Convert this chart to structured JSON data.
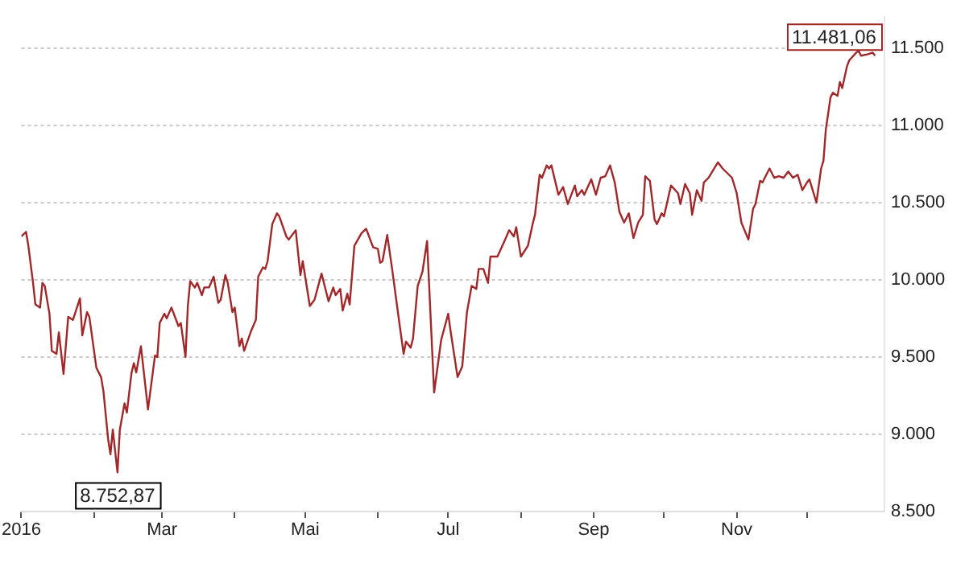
{
  "chart_data": {
    "type": "line",
    "series": [
      {
        "color": "#a0282a",
        "x": [
          "2016-01-01",
          "2016-01-03",
          "2016-01-04",
          "2016-01-06",
          "2016-01-07",
          "2016-01-09",
          "2016-01-10",
          "2016-01-11",
          "2016-01-13",
          "2016-01-14",
          "2016-01-16",
          "2016-01-17",
          "2016-01-19",
          "2016-01-21",
          "2016-01-23",
          "2016-01-26",
          "2016-01-27",
          "2016-01-29",
          "2016-01-30",
          "2016-02-02",
          "2016-02-04",
          "2016-02-05",
          "2016-02-07",
          "2016-02-08",
          "2016-02-09",
          "2016-02-11",
          "2016-02-12",
          "2016-02-14",
          "2016-02-15",
          "2016-02-17",
          "2016-02-18",
          "2016-02-19",
          "2016-02-21",
          "2016-02-24",
          "2016-02-27",
          "2016-02-28",
          "2016-02-29",
          "2016-03-02",
          "2016-03-03",
          "2016-03-05",
          "2016-03-08",
          "2016-03-09",
          "2016-03-11",
          "2016-03-12",
          "2016-03-13",
          "2016-03-15",
          "2016-03-16",
          "2016-03-18",
          "2016-03-19",
          "2016-03-21",
          "2016-03-23",
          "2016-03-25",
          "2016-03-26",
          "2016-03-28",
          "2016-03-29",
          "2016-03-31",
          "2016-04-01",
          "2016-04-03",
          "2016-04-04",
          "2016-04-05",
          "2016-04-08",
          "2016-04-10",
          "2016-04-11",
          "2016-04-13",
          "2016-04-14",
          "2016-04-15",
          "2016-04-17",
          "2016-04-19",
          "2016-04-20",
          "2016-04-23",
          "2016-04-24",
          "2016-04-27",
          "2016-04-29",
          "2016-04-30",
          "2016-05-03",
          "2016-05-05",
          "2016-05-08",
          "2016-05-11",
          "2016-05-13",
          "2016-05-14",
          "2016-05-16",
          "2016-05-17",
          "2016-05-19",
          "2016-05-20",
          "2016-05-22",
          "2016-05-25",
          "2016-05-27",
          "2016-05-30",
          "2016-06-01",
          "2016-06-02",
          "2016-06-03",
          "2016-06-05",
          "2016-06-07",
          "2016-06-10",
          "2016-06-12",
          "2016-06-13",
          "2016-06-15",
          "2016-06-16",
          "2016-06-18",
          "2016-06-20",
          "2016-06-22",
          "2016-06-25",
          "2016-06-28",
          "2016-07-01",
          "2016-07-02",
          "2016-07-05",
          "2016-07-07",
          "2016-07-09",
          "2016-07-11",
          "2016-07-13",
          "2016-07-14",
          "2016-07-16",
          "2016-07-18",
          "2016-07-19",
          "2016-07-22",
          "2016-07-25",
          "2016-07-27",
          "2016-07-29",
          "2016-07-30",
          "2016-08-01",
          "2016-08-04",
          "2016-08-06",
          "2016-08-07",
          "2016-08-09",
          "2016-08-10",
          "2016-08-12",
          "2016-08-13",
          "2016-08-14",
          "2016-08-17",
          "2016-08-19",
          "2016-08-21",
          "2016-08-24",
          "2016-08-25",
          "2016-08-27",
          "2016-08-28",
          "2016-08-31",
          "2016-09-02",
          "2016-09-04",
          "2016-09-06",
          "2016-09-08",
          "2016-09-10",
          "2016-09-12",
          "2016-09-14",
          "2016-09-16",
          "2016-09-18",
          "2016-09-20",
          "2016-09-22",
          "2016-09-23",
          "2016-09-25",
          "2016-09-27",
          "2016-09-28",
          "2016-09-30",
          "2016-10-01",
          "2016-10-04",
          "2016-10-07",
          "2016-10-08",
          "2016-10-10",
          "2016-10-12",
          "2016-10-13",
          "2016-10-15",
          "2016-10-17",
          "2016-10-18",
          "2016-10-20",
          "2016-10-22",
          "2016-10-24",
          "2016-10-26",
          "2016-10-30",
          "2016-11-01",
          "2016-11-03",
          "2016-11-06",
          "2016-11-08",
          "2016-11-09",
          "2016-11-11",
          "2016-11-12",
          "2016-11-15",
          "2016-11-17",
          "2016-11-19",
          "2016-11-21",
          "2016-11-23",
          "2016-11-25",
          "2016-11-27",
          "2016-11-29",
          "2016-12-01",
          "2016-12-02",
          "2016-12-05",
          "2016-12-07",
          "2016-12-08",
          "2016-12-09",
          "2016-12-11",
          "2016-12-12",
          "2016-12-14",
          "2016-12-15",
          "2016-12-16",
          "2016-12-18",
          "2016-12-19",
          "2016-12-22",
          "2016-12-23",
          "2016-12-24",
          "2016-12-27",
          "2016-12-29",
          "2016-12-30"
        ],
        "values": [
          10280,
          10310,
          10220,
          9980,
          9840,
          9820,
          9980,
          9960,
          9780,
          9540,
          9520,
          9660,
          9390,
          9760,
          9740,
          9880,
          9640,
          9790,
          9760,
          9430,
          9370,
          9280,
          8970,
          8870,
          9030,
          8752.87,
          9030,
          9200,
          9140,
          9400,
          9460,
          9400,
          9570,
          9160,
          9510,
          9500,
          9720,
          9780,
          9750,
          9820,
          9700,
          9720,
          9500,
          9830,
          9990,
          9950,
          9980,
          9900,
          9950,
          9950,
          10020,
          9850,
          9870,
          10030,
          9980,
          9790,
          9820,
          9570,
          9620,
          9540,
          9670,
          9740,
          10020,
          10080,
          10070,
          10120,
          10360,
          10430,
          10410,
          10280,
          10260,
          10320,
          10030,
          10120,
          9830,
          9870,
          10040,
          9860,
          9950,
          9900,
          9940,
          9800,
          9910,
          9840,
          10220,
          10300,
          10330,
          10210,
          10200,
          10110,
          10120,
          10290,
          10080,
          9740,
          9520,
          9600,
          9560,
          9620,
          9960,
          10050,
          10250,
          9270,
          9610,
          9780,
          9670,
          9370,
          9440,
          9790,
          9960,
          9940,
          10070,
          10070,
          9980,
          10150,
          10150,
          10250,
          10320,
          10280,
          10340,
          10150,
          10220,
          10360,
          10420,
          10680,
          10660,
          10740,
          10720,
          10740,
          10550,
          10600,
          10490,
          10610,
          10540,
          10580,
          10550,
          10650,
          10550,
          10660,
          10670,
          10740,
          10630,
          10440,
          10370,
          10430,
          10270,
          10370,
          10420,
          10670,
          10640,
          10390,
          10360,
          10430,
          10410,
          10610,
          10560,
          10490,
          10620,
          10560,
          10420,
          10580,
          10510,
          10630,
          10660,
          10710,
          10760,
          10720,
          10660,
          10560,
          10370,
          10260,
          10460,
          10490,
          10640,
          10630,
          10720,
          10660,
          10670,
          10660,
          10700,
          10660,
          10680,
          10580,
          10630,
          10650,
          10500,
          10720,
          10770,
          10970,
          11180,
          11210,
          11190,
          11280,
          11240,
          11380,
          11420,
          11470,
          11481.06,
          11450,
          11460,
          11470,
          11450
        ]
      }
    ],
    "xlim": [
      "2016-01-01",
      "2017-01-03"
    ],
    "xticks": [
      {
        "value": "2016-01-01",
        "label": "2016"
      },
      {
        "value": "2016-02-01",
        "label": null
      },
      {
        "value": "2016-03-01",
        "label": "Mar"
      },
      {
        "value": "2016-04-01",
        "label": null
      },
      {
        "value": "2016-05-01",
        "label": "Mai"
      },
      {
        "value": "2016-06-01",
        "label": null
      },
      {
        "value": "2016-07-01",
        "label": "Jul"
      },
      {
        "value": "2016-08-01",
        "label": null
      },
      {
        "value": "2016-09-01",
        "label": "Sep"
      },
      {
        "value": "2016-10-01",
        "label": null
      },
      {
        "value": "2016-11-01",
        "label": "Nov"
      },
      {
        "value": "2016-12-01",
        "label": null
      }
    ],
    "ylim": [
      8500,
      11700
    ],
    "yticks": [
      {
        "value": 8500,
        "label": "8.500"
      },
      {
        "value": 9000,
        "label": "9.000"
      },
      {
        "value": 9500,
        "label": "9.500"
      },
      {
        "value": 10000,
        "label": "10.000"
      },
      {
        "value": 10500,
        "label": "10.500"
      },
      {
        "value": 11000,
        "label": "11.000"
      },
      {
        "value": 11500,
        "label": "11.500"
      }
    ],
    "annotations": [
      {
        "text": "8.752,87",
        "x": "2016-02-11",
        "y": 8752.87
      },
      {
        "text": "11.481,06",
        "x": "2016-12-23",
        "y": 11481.06
      }
    ],
    "grid": "y",
    "legend": false
  }
}
